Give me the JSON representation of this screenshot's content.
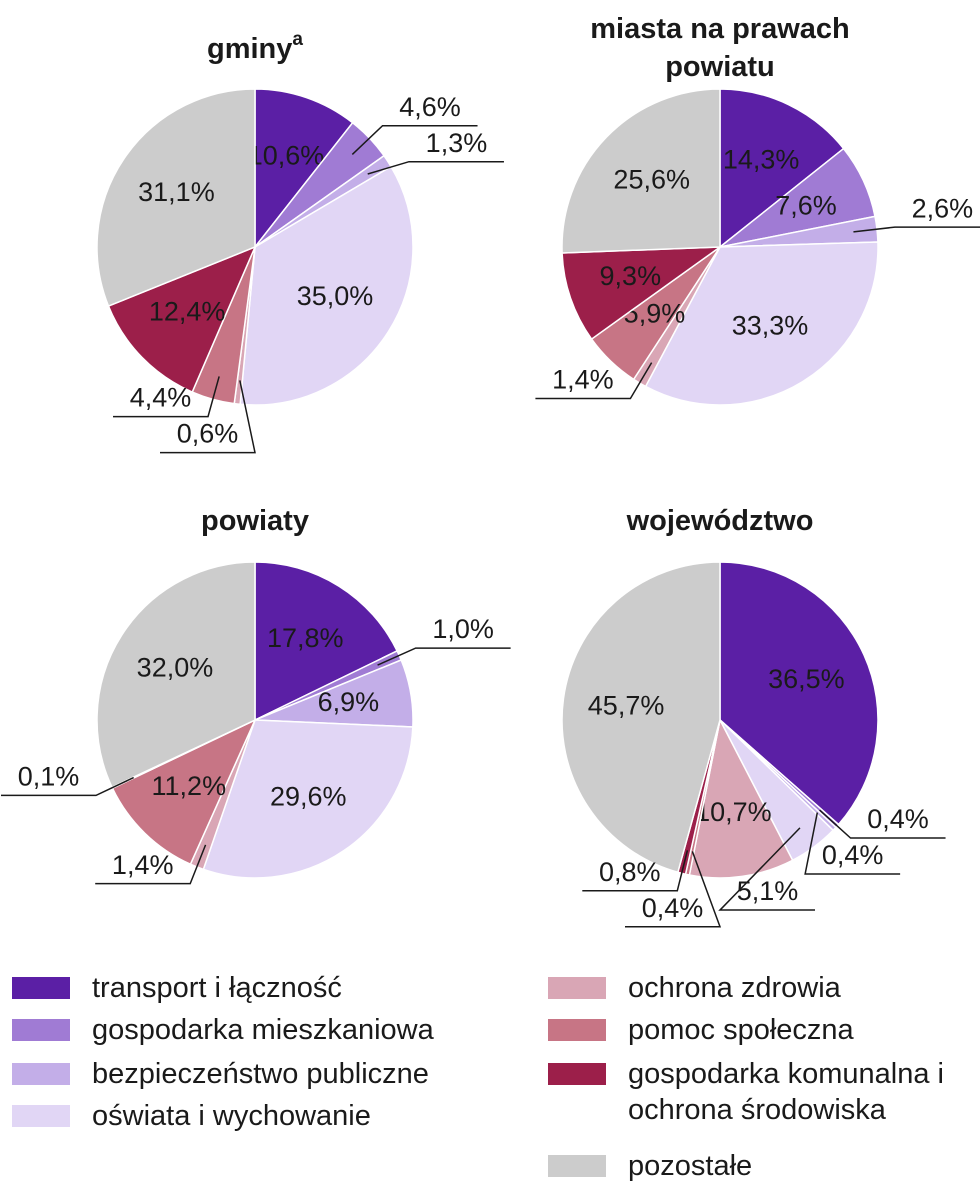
{
  "chart_data": [
    {
      "type": "pie",
      "title": [
        "gminy"
      ],
      "title_note": "a",
      "values": [
        10.6,
        4.6,
        1.3,
        35.0,
        0.6,
        4.4,
        12.4,
        31.1
      ],
      "value_labels": [
        "10,6%",
        "4,6%",
        "1,3%",
        "35,0%",
        "0,6%",
        "4,4%",
        "12,4%",
        "31,1%"
      ]
    },
    {
      "type": "pie",
      "title": [
        "miasta na prawach",
        "powiatu"
      ],
      "values": [
        14.3,
        7.6,
        2.6,
        33.3,
        1.4,
        5.9,
        9.3,
        25.6
      ],
      "value_labels": [
        "14,3%",
        "7,6%",
        "2,6%",
        "33,3%",
        "1,4%",
        "5,9%",
        "9,3%",
        "25,6%"
      ]
    },
    {
      "type": "pie",
      "title": [
        "powiaty"
      ],
      "values": [
        17.8,
        1.0,
        6.9,
        29.6,
        1.4,
        11.2,
        0.1,
        32.0
      ],
      "value_labels": [
        "17,8%",
        "1,0%",
        "6,9%",
        "29,6%",
        "1,4%",
        "11,2%",
        "0,1%",
        "32,0%"
      ]
    },
    {
      "type": "pie",
      "title": [
        "województwo"
      ],
      "values": [
        36.5,
        0.4,
        0.4,
        5.1,
        10.7,
        0.4,
        0.8,
        45.7
      ],
      "value_labels": [
        "36,5%",
        "0,4%",
        "0,4%",
        "5,1%",
        "10,7%",
        "0,4%",
        "0,8%",
        "45,7%"
      ]
    }
  ],
  "legend": [
    {
      "name": "transport i łączność",
      "color": "#5b1fa5"
    },
    {
      "name": "gospodarka mieszkaniowa",
      "color": "#a07bd4"
    },
    {
      "name": "bezpieczeństwo publiczne",
      "color": "#c3aee8"
    },
    {
      "name": "oświata i wychowanie",
      "color": "#e1d6f5"
    },
    {
      "name": "ochrona zdrowia",
      "color": "#d9a6b5"
    },
    {
      "name": "pomoc społeczna",
      "color": "#c77585"
    },
    {
      "name": "gospodarka komunalna i ochrona środowiska",
      "color": "#9c1f4a"
    },
    {
      "name": "pozostałe",
      "color": "#cccccc"
    }
  ]
}
